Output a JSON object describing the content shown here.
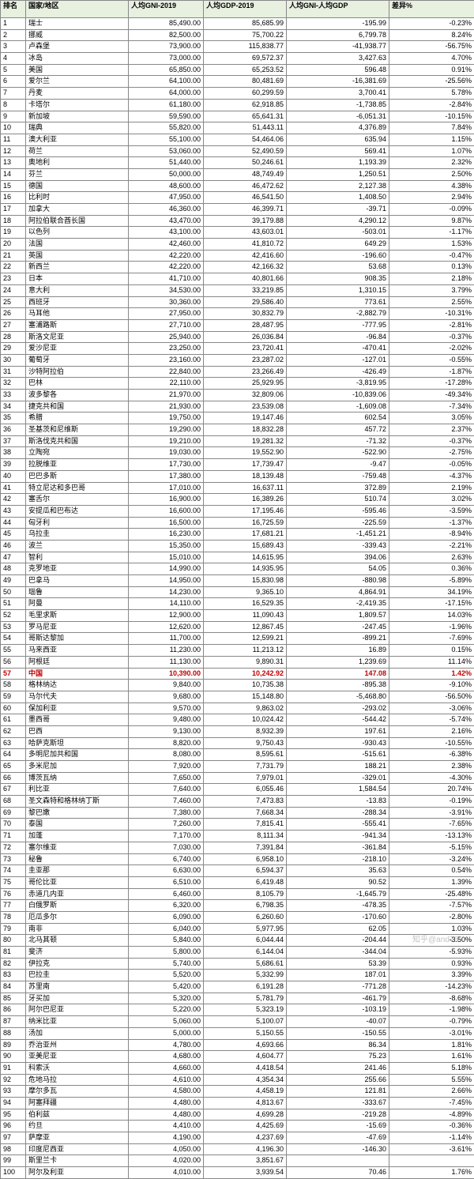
{
  "table": {
    "headers": {
      "rank": "排名",
      "country": "国家/地区",
      "gni": "人均GNI-2019",
      "gdp": "人均GDP-2019",
      "diff": "人均GNI-人均GDP",
      "pct": "差异%"
    },
    "highlightCountry": "中国",
    "rows": [
      {
        "rank": 1,
        "country": "瑞士",
        "gni": "85,490.00",
        "gdp": "85,685.99",
        "diff": "-195.99",
        "pct": "-0.23%"
      },
      {
        "rank": 2,
        "country": "挪威",
        "gni": "82,500.00",
        "gdp": "75,700.22",
        "diff": "6,799.78",
        "pct": "8.24%"
      },
      {
        "rank": 3,
        "country": "卢森堡",
        "gni": "73,900.00",
        "gdp": "115,838.77",
        "diff": "-41,938.77",
        "pct": "-56.75%"
      },
      {
        "rank": 4,
        "country": "冰岛",
        "gni": "73,000.00",
        "gdp": "69,572.37",
        "diff": "3,427.63",
        "pct": "4.70%"
      },
      {
        "rank": 5,
        "country": "美国",
        "gni": "65,850.00",
        "gdp": "65,253.52",
        "diff": "596.48",
        "pct": "0.91%"
      },
      {
        "rank": 6,
        "country": "爱尔兰",
        "gni": "64,100.00",
        "gdp": "80,481.69",
        "diff": "-16,381.69",
        "pct": "-25.56%"
      },
      {
        "rank": 7,
        "country": "丹麦",
        "gni": "64,000.00",
        "gdp": "60,299.59",
        "diff": "3,700.41",
        "pct": "5.78%"
      },
      {
        "rank": 8,
        "country": "卡塔尔",
        "gni": "61,180.00",
        "gdp": "62,918.85",
        "diff": "-1,738.85",
        "pct": "-2.84%"
      },
      {
        "rank": 9,
        "country": "新加坡",
        "gni": "59,590.00",
        "gdp": "65,641.31",
        "diff": "-6,051.31",
        "pct": "-10.15%"
      },
      {
        "rank": 10,
        "country": "瑞典",
        "gni": "55,820.00",
        "gdp": "51,443.11",
        "diff": "4,376.89",
        "pct": "7.84%"
      },
      {
        "rank": 11,
        "country": "澳大利亚",
        "gni": "55,100.00",
        "gdp": "54,464.06",
        "diff": "635.94",
        "pct": "1.15%"
      },
      {
        "rank": 12,
        "country": "荷兰",
        "gni": "53,060.00",
        "gdp": "52,490.59",
        "diff": "569.41",
        "pct": "1.07%"
      },
      {
        "rank": 13,
        "country": "奥地利",
        "gni": "51,440.00",
        "gdp": "50,246.61",
        "diff": "1,193.39",
        "pct": "2.32%"
      },
      {
        "rank": 14,
        "country": "芬兰",
        "gni": "50,000.00",
        "gdp": "48,749.49",
        "diff": "1,250.51",
        "pct": "2.50%"
      },
      {
        "rank": 15,
        "country": "德国",
        "gni": "48,600.00",
        "gdp": "46,472.62",
        "diff": "2,127.38",
        "pct": "4.38%"
      },
      {
        "rank": 16,
        "country": "比利时",
        "gni": "47,950.00",
        "gdp": "46,541.50",
        "diff": "1,408.50",
        "pct": "2.94%"
      },
      {
        "rank": 17,
        "country": "加拿大",
        "gni": "46,360.00",
        "gdp": "46,399.71",
        "diff": "-39.71",
        "pct": "-0.09%"
      },
      {
        "rank": 18,
        "country": "阿拉伯联合酋长国",
        "gni": "43,470.00",
        "gdp": "39,179.88",
        "diff": "4,290.12",
        "pct": "9.87%"
      },
      {
        "rank": 19,
        "country": "以色列",
        "gni": "43,100.00",
        "gdp": "43,603.01",
        "diff": "-503.01",
        "pct": "-1.17%"
      },
      {
        "rank": 20,
        "country": "法国",
        "gni": "42,460.00",
        "gdp": "41,810.72",
        "diff": "649.29",
        "pct": "1.53%"
      },
      {
        "rank": 21,
        "country": "英国",
        "gni": "42,220.00",
        "gdp": "42,416.60",
        "diff": "-196.60",
        "pct": "-0.47%"
      },
      {
        "rank": 22,
        "country": "新西兰",
        "gni": "42,220.00",
        "gdp": "42,166.32",
        "diff": "53.68",
        "pct": "0.13%"
      },
      {
        "rank": 23,
        "country": "日本",
        "gni": "41,710.00",
        "gdp": "40,801.66",
        "diff": "908.35",
        "pct": "2.18%"
      },
      {
        "rank": 24,
        "country": "意大利",
        "gni": "34,530.00",
        "gdp": "33,219.85",
        "diff": "1,310.15",
        "pct": "3.79%"
      },
      {
        "rank": 25,
        "country": "西班牙",
        "gni": "30,360.00",
        "gdp": "29,586.40",
        "diff": "773.61",
        "pct": "2.55%"
      },
      {
        "rank": 26,
        "country": "马耳他",
        "gni": "27,950.00",
        "gdp": "30,832.79",
        "diff": "-2,882.79",
        "pct": "-10.31%"
      },
      {
        "rank": 27,
        "country": "塞浦路斯",
        "gni": "27,710.00",
        "gdp": "28,487.95",
        "diff": "-777.95",
        "pct": "-2.81%"
      },
      {
        "rank": 28,
        "country": "斯洛文尼亚",
        "gni": "25,940.00",
        "gdp": "26,036.84",
        "diff": "-96.84",
        "pct": "-0.37%"
      },
      {
        "rank": 29,
        "country": "爱沙尼亚",
        "gni": "23,250.00",
        "gdp": "23,720.41",
        "diff": "-470.41",
        "pct": "-2.02%"
      },
      {
        "rank": 30,
        "country": "葡萄牙",
        "gni": "23,160.00",
        "gdp": "23,287.02",
        "diff": "-127.01",
        "pct": "-0.55%"
      },
      {
        "rank": 31,
        "country": "沙特阿拉伯",
        "gni": "22,840.00",
        "gdp": "23,266.49",
        "diff": "-426.49",
        "pct": "-1.87%"
      },
      {
        "rank": 32,
        "country": "巴林",
        "gni": "22,110.00",
        "gdp": "25,929.95",
        "diff": "-3,819.95",
        "pct": "-17.28%"
      },
      {
        "rank": 33,
        "country": "波多黎各",
        "gni": "21,970.00",
        "gdp": "32,809.06",
        "diff": "-10,839.06",
        "pct": "-49.34%"
      },
      {
        "rank": 34,
        "country": "捷克共和国",
        "gni": "21,930.00",
        "gdp": "23,539.08",
        "diff": "-1,609.08",
        "pct": "-7.34%"
      },
      {
        "rank": 35,
        "country": "希腊",
        "gni": "19,750.00",
        "gdp": "19,147.46",
        "diff": "602.54",
        "pct": "3.05%"
      },
      {
        "rank": 36,
        "country": "圣基茨和尼维斯",
        "gni": "19,290.00",
        "gdp": "18,832.28",
        "diff": "457.72",
        "pct": "2.37%"
      },
      {
        "rank": 37,
        "country": "斯洛伐克共和国",
        "gni": "19,210.00",
        "gdp": "19,281.32",
        "diff": "-71.32",
        "pct": "-0.37%"
      },
      {
        "rank": 38,
        "country": "立陶宛",
        "gni": "19,030.00",
        "gdp": "19,552.90",
        "diff": "-522.90",
        "pct": "-2.75%"
      },
      {
        "rank": 39,
        "country": "拉脱维亚",
        "gni": "17,730.00",
        "gdp": "17,739.47",
        "diff": "-9.47",
        "pct": "-0.05%"
      },
      {
        "rank": 40,
        "country": "巴巴多斯",
        "gni": "17,380.00",
        "gdp": "18,139.48",
        "diff": "-759.48",
        "pct": "-4.37%"
      },
      {
        "rank": 41,
        "country": "特立尼达和多巴哥",
        "gni": "17,010.00",
        "gdp": "16,637.11",
        "diff": "372.89",
        "pct": "2.19%"
      },
      {
        "rank": 42,
        "country": "塞舌尔",
        "gni": "16,900.00",
        "gdp": "16,389.26",
        "diff": "510.74",
        "pct": "3.02%"
      },
      {
        "rank": 43,
        "country": "安提瓜和巴布达",
        "gni": "16,600.00",
        "gdp": "17,195.46",
        "diff": "-595.46",
        "pct": "-3.59%"
      },
      {
        "rank": 44,
        "country": "匈牙利",
        "gni": "16,500.00",
        "gdp": "16,725.59",
        "diff": "-225.59",
        "pct": "-1.37%"
      },
      {
        "rank": 45,
        "country": "乌拉圭",
        "gni": "16,230.00",
        "gdp": "17,681.21",
        "diff": "-1,451.21",
        "pct": "-8.94%"
      },
      {
        "rank": 46,
        "country": "波兰",
        "gni": "15,350.00",
        "gdp": "15,689.43",
        "diff": "-339.43",
        "pct": "-2.21%"
      },
      {
        "rank": 47,
        "country": "智利",
        "gni": "15,010.00",
        "gdp": "14,615.95",
        "diff": "394.06",
        "pct": "2.63%"
      },
      {
        "rank": 48,
        "country": "克罗地亚",
        "gni": "14,990.00",
        "gdp": "14,935.95",
        "diff": "54.05",
        "pct": "0.36%"
      },
      {
        "rank": 49,
        "country": "巴拿马",
        "gni": "14,950.00",
        "gdp": "15,830.98",
        "diff": "-880.98",
        "pct": "-5.89%"
      },
      {
        "rank": 50,
        "country": "瑙鲁",
        "gni": "14,230.00",
        "gdp": "9,365.10",
        "diff": "4,864.91",
        "pct": "34.19%"
      },
      {
        "rank": 51,
        "country": "阿曼",
        "gni": "14,110.00",
        "gdp": "16,529.35",
        "diff": "-2,419.35",
        "pct": "-17.15%"
      },
      {
        "rank": 52,
        "country": "毛里求斯",
        "gni": "12,900.00",
        "gdp": "11,090.43",
        "diff": "1,809.57",
        "pct": "14.03%"
      },
      {
        "rank": 53,
        "country": "罗马尼亚",
        "gni": "12,620.00",
        "gdp": "12,867.45",
        "diff": "-247.45",
        "pct": "-1.96%"
      },
      {
        "rank": 54,
        "country": "哥斯达黎加",
        "gni": "11,700.00",
        "gdp": "12,599.21",
        "diff": "-899.21",
        "pct": "-7.69%"
      },
      {
        "rank": 55,
        "country": "马来西亚",
        "gni": "11,230.00",
        "gdp": "11,213.12",
        "diff": "16.89",
        "pct": "0.15%"
      },
      {
        "rank": 56,
        "country": "阿根廷",
        "gni": "11,130.00",
        "gdp": "9,890.31",
        "diff": "1,239.69",
        "pct": "11.14%"
      },
      {
        "rank": 57,
        "country": "中国",
        "gni": "10,390.00",
        "gdp": "10,242.92",
        "diff": "147.08",
        "pct": "1.42%"
      },
      {
        "rank": 58,
        "country": "格林纳达",
        "gni": "9,840.00",
        "gdp": "10,735.38",
        "diff": "-895.38",
        "pct": "-9.10%"
      },
      {
        "rank": 59,
        "country": "马尔代夫",
        "gni": "9,680.00",
        "gdp": "15,148.80",
        "diff": "-5,468.80",
        "pct": "-56.50%"
      },
      {
        "rank": 60,
        "country": "保加利亚",
        "gni": "9,570.00",
        "gdp": "9,863.02",
        "diff": "-293.02",
        "pct": "-3.06%"
      },
      {
        "rank": 61,
        "country": "墨西哥",
        "gni": "9,480.00",
        "gdp": "10,024.42",
        "diff": "-544.42",
        "pct": "-5.74%"
      },
      {
        "rank": 62,
        "country": "巴西",
        "gni": "9,130.00",
        "gdp": "8,932.39",
        "diff": "197.61",
        "pct": "2.16%"
      },
      {
        "rank": 63,
        "country": "哈萨克斯坦",
        "gni": "8,820.00",
        "gdp": "9,750.43",
        "diff": "-930.43",
        "pct": "-10.55%"
      },
      {
        "rank": 64,
        "country": "多明尼加共和国",
        "gni": "8,080.00",
        "gdp": "8,595.61",
        "diff": "-515.61",
        "pct": "-6.38%"
      },
      {
        "rank": 65,
        "country": "多米尼加",
        "gni": "7,920.00",
        "gdp": "7,731.79",
        "diff": "188.21",
        "pct": "2.38%"
      },
      {
        "rank": 66,
        "country": "博茨瓦纳",
        "gni": "7,650.00",
        "gdp": "7,979.01",
        "diff": "-329.01",
        "pct": "-4.30%"
      },
      {
        "rank": 67,
        "country": "利比亚",
        "gni": "7,640.00",
        "gdp": "6,055.46",
        "diff": "1,584.54",
        "pct": "20.74%"
      },
      {
        "rank": 68,
        "country": "圣文森特和格林纳丁斯",
        "gni": "7,460.00",
        "gdp": "7,473.83",
        "diff": "-13.83",
        "pct": "-0.19%"
      },
      {
        "rank": 69,
        "country": "黎巴嫩",
        "gni": "7,380.00",
        "gdp": "7,668.34",
        "diff": "-288.34",
        "pct": "-3.91%"
      },
      {
        "rank": 70,
        "country": "泰国",
        "gni": "7,260.00",
        "gdp": "7,815.41",
        "diff": "-555.41",
        "pct": "-7.65%"
      },
      {
        "rank": 71,
        "country": "加蓬",
        "gni": "7,170.00",
        "gdp": "8,111.34",
        "diff": "-941.34",
        "pct": "-13.13%"
      },
      {
        "rank": 72,
        "country": "塞尔维亚",
        "gni": "7,030.00",
        "gdp": "7,391.84",
        "diff": "-361.84",
        "pct": "-5.15%"
      },
      {
        "rank": 73,
        "country": "秘鲁",
        "gni": "6,740.00",
        "gdp": "6,958.10",
        "diff": "-218.10",
        "pct": "-3.24%"
      },
      {
        "rank": 74,
        "country": "圭亚那",
        "gni": "6,630.00",
        "gdp": "6,594.37",
        "diff": "35.63",
        "pct": "0.54%"
      },
      {
        "rank": 75,
        "country": "哥伦比亚",
        "gni": "6,510.00",
        "gdp": "6,419.48",
        "diff": "90.52",
        "pct": "1.39%"
      },
      {
        "rank": 76,
        "country": "赤道几内亚",
        "gni": "6,460.00",
        "gdp": "8,105.79",
        "diff": "-1,645.79",
        "pct": "-25.48%"
      },
      {
        "rank": 77,
        "country": "白俄罗斯",
        "gni": "6,320.00",
        "gdp": "6,798.35",
        "diff": "-478.35",
        "pct": "-7.57%"
      },
      {
        "rank": 78,
        "country": "厄瓜多尔",
        "gni": "6,090.00",
        "gdp": "6,260.60",
        "diff": "-170.60",
        "pct": "-2.80%"
      },
      {
        "rank": 79,
        "country": "南非",
        "gni": "6,040.00",
        "gdp": "5,977.95",
        "diff": "62.05",
        "pct": "1.03%"
      },
      {
        "rank": 80,
        "country": "北马其顿",
        "gni": "5,840.00",
        "gdp": "6,044.44",
        "diff": "-204.44",
        "pct": "-3.50%"
      },
      {
        "rank": 81,
        "country": "斐济",
        "gni": "5,800.00",
        "gdp": "6,144.04",
        "diff": "-344.04",
        "pct": "-5.93%"
      },
      {
        "rank": 82,
        "country": "伊拉克",
        "gni": "5,740.00",
        "gdp": "5,686.61",
        "diff": "53.39",
        "pct": "0.93%"
      },
      {
        "rank": 83,
        "country": "巴拉圭",
        "gni": "5,520.00",
        "gdp": "5,332.99",
        "diff": "187.01",
        "pct": "3.39%"
      },
      {
        "rank": 84,
        "country": "苏里南",
        "gni": "5,420.00",
        "gdp": "6,191.28",
        "diff": "-771.28",
        "pct": "-14.23%"
      },
      {
        "rank": 85,
        "country": "牙买加",
        "gni": "5,320.00",
        "gdp": "5,781.79",
        "diff": "-461.79",
        "pct": "-8.68%"
      },
      {
        "rank": 86,
        "country": "阿尔巴尼亚",
        "gni": "5,220.00",
        "gdp": "5,323.19",
        "diff": "-103.19",
        "pct": "-1.98%"
      },
      {
        "rank": 87,
        "country": "纳米比亚",
        "gni": "5,060.00",
        "gdp": "5,100.07",
        "diff": "-40.07",
        "pct": "-0.79%"
      },
      {
        "rank": 88,
        "country": "汤加",
        "gni": "5,000.00",
        "gdp": "5,150.55",
        "diff": "-150.55",
        "pct": "-3.01%"
      },
      {
        "rank": 89,
        "country": "乔治亚州",
        "gni": "4,780.00",
        "gdp": "4,693.66",
        "diff": "86.34",
        "pct": "1.81%"
      },
      {
        "rank": 90,
        "country": "亚美尼亚",
        "gni": "4,680.00",
        "gdp": "4,604.77",
        "diff": "75.23",
        "pct": "1.61%"
      },
      {
        "rank": 91,
        "country": "科索沃",
        "gni": "4,660.00",
        "gdp": "4,418.54",
        "diff": "241.46",
        "pct": "5.18%"
      },
      {
        "rank": 92,
        "country": "危地马拉",
        "gni": "4,610.00",
        "gdp": "4,354.34",
        "diff": "255.66",
        "pct": "5.55%"
      },
      {
        "rank": 93,
        "country": "摩尔多瓦",
        "gni": "4,580.00",
        "gdp": "4,458.19",
        "diff": "121.81",
        "pct": "2.66%"
      },
      {
        "rank": 94,
        "country": "阿塞拜疆",
        "gni": "4,480.00",
        "gdp": "4,813.67",
        "diff": "-333.67",
        "pct": "-7.45%"
      },
      {
        "rank": 95,
        "country": "伯利兹",
        "gni": "4,480.00",
        "gdp": "4,699.28",
        "diff": "-219.28",
        "pct": "-4.89%"
      },
      {
        "rank": 96,
        "country": "约旦",
        "gni": "4,410.00",
        "gdp": "4,425.69",
        "diff": "-15.69",
        "pct": "-0.36%"
      },
      {
        "rank": 97,
        "country": "萨摩亚",
        "gni": "4,190.00",
        "gdp": "4,237.69",
        "diff": "-47.69",
        "pct": "-1.14%"
      },
      {
        "rank": 98,
        "country": "印度尼西亚",
        "gni": "4,050.00",
        "gdp": "4,196.30",
        "diff": "-146.30",
        "pct": "-3.61%"
      },
      {
        "rank": 99,
        "country": "斯里兰卡",
        "gni": "4,020.00",
        "gdp": "3,851.67",
        "diff": "",
        "pct": ""
      },
      {
        "rank": 100,
        "country": "阿尔及利亚",
        "gni": "4,010.00",
        "gdp": "3,939.54",
        "diff": "70.46",
        "pct": "1.76%"
      }
    ]
  },
  "watermark": "知乎@and76"
}
